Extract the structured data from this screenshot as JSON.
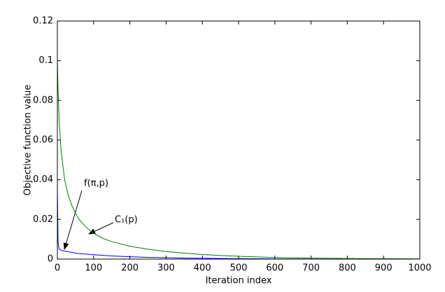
{
  "chart_data": {
    "type": "line",
    "x_label": "Iteration index",
    "y_label": "Objective function value",
    "x": [
      0,
      2,
      5,
      10,
      20,
      30,
      40,
      50,
      60,
      80,
      100,
      125,
      150,
      200,
      250,
      300,
      350,
      400,
      450,
      500,
      600,
      700,
      800,
      900,
      1000
    ],
    "series": [
      {
        "color": "#008000",
        "values": [
          0.1,
          0.085,
          0.07,
          0.055,
          0.04,
          0.032,
          0.027,
          0.023,
          0.02,
          0.016,
          0.013,
          0.0105,
          0.0088,
          0.0065,
          0.005,
          0.0038,
          0.003,
          0.0023,
          0.0018,
          0.0014,
          0.0008,
          0.0005,
          0.0003,
          0.0002,
          0.0001
        ]
      },
      {
        "color": "#0000ff",
        "values": [
          0.035,
          0.008,
          0.005,
          0.0045,
          0.004,
          0.0037,
          0.0034,
          0.003,
          0.0028,
          0.0025,
          0.0022,
          0.0019,
          0.0016,
          0.0012,
          0.0009,
          0.0007,
          0.0005,
          0.0004,
          0.0003,
          0.0002,
          0.0001,
          5e-05,
          0,
          0,
          0
        ]
      }
    ],
    "annotations": [
      "f(π,p)",
      "C₁(p)"
    ],
    "xlim": [
      0,
      1000
    ],
    "xticks": [
      0,
      100,
      200,
      300,
      400,
      500,
      600,
      700,
      800,
      900,
      1000
    ],
    "ylim": [
      0,
      0.12
    ],
    "yticks": [
      0,
      0.02,
      0.04,
      0.06,
      0.08,
      0.1,
      0.12
    ]
  }
}
